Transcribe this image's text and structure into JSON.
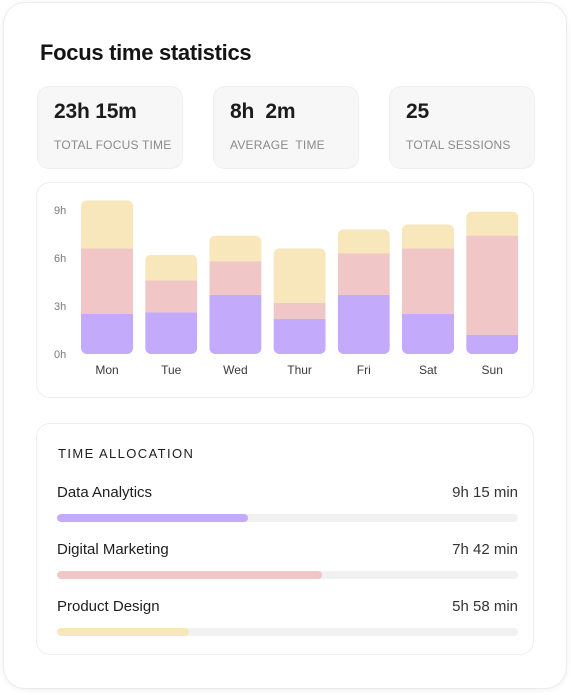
{
  "header": {
    "title": "Focus time statistics"
  },
  "stats": [
    {
      "value": "23h 15m",
      "label": "TOTAL FOCUS TIME"
    },
    {
      "value": "8h  2m",
      "label": "AVERAGE  TIME"
    },
    {
      "value": "25",
      "label": "TOTAL SESSIONS"
    }
  ],
  "colors": {
    "purple": "#c4aafb",
    "pink": "#f0c6c6",
    "yellow": "#f8e7bb",
    "track": "#f1f1f1"
  },
  "chart_data": {
    "type": "bar",
    "stacked": true,
    "categories": [
      "Mon",
      "Tue",
      "Wed",
      "Thur",
      "Fri",
      "Sat",
      "Sun"
    ],
    "series": [
      {
        "color": "#c4aafb",
        "values": [
          2.5,
          2.6,
          3.7,
          2.2,
          3.7,
          2.5,
          1.2
        ]
      },
      {
        "color": "#f0c6c6",
        "values": [
          4.1,
          2.0,
          2.1,
          1.0,
          2.6,
          4.1,
          6.2
        ]
      },
      {
        "color": "#f8e7bb",
        "values": [
          3.0,
          1.6,
          1.6,
          3.4,
          1.5,
          1.5,
          1.5
        ]
      }
    ],
    "ylim": [
      0,
      9
    ],
    "yticks": [
      0,
      3,
      6,
      9
    ],
    "ytick_labels": [
      "0h",
      "3h",
      "6h",
      "9h"
    ],
    "grid": false,
    "legend": "none"
  },
  "allocation": {
    "title": "TIME ALLOCATION",
    "items": [
      {
        "name": "Data Analytics",
        "time": "9h 15 min",
        "progress": 0.414,
        "color": "#c4aafb"
      },
      {
        "name": "Digital Marketing",
        "time": "7h 42 min",
        "progress": 0.575,
        "color": "#f0c6c6"
      },
      {
        "name": "Product Design",
        "time": "5h 58 min",
        "progress": 0.287,
        "color": "#f8e7bb"
      }
    ]
  }
}
